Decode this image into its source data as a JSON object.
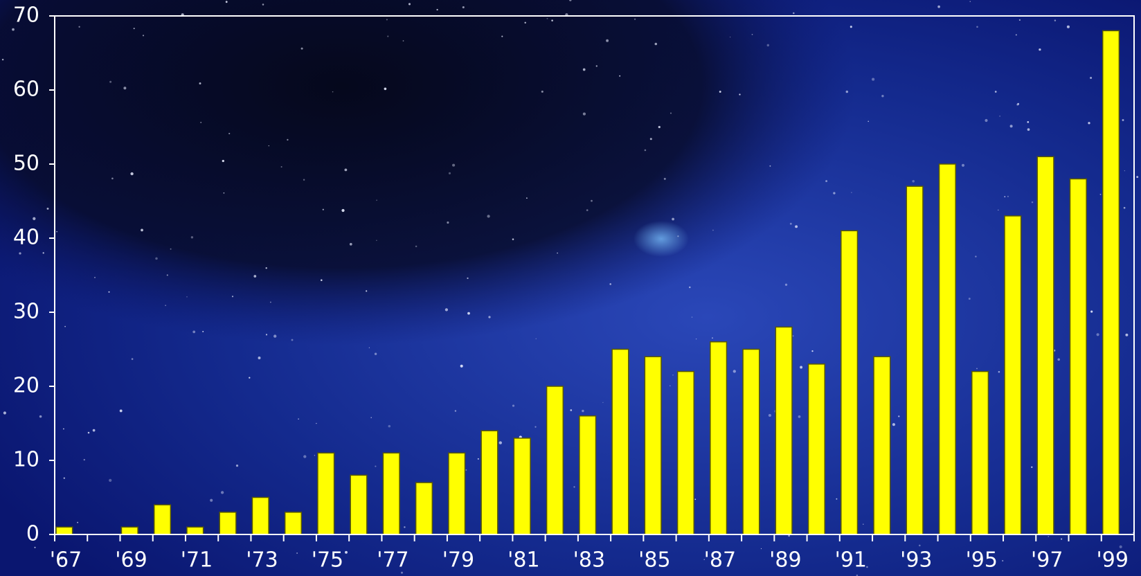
{
  "chart_data": {
    "type": "bar",
    "categories": [
      "'67",
      null,
      "'69",
      null,
      "'71",
      null,
      "'73",
      null,
      "'75",
      null,
      "'77",
      null,
      "'79",
      null,
      "'81",
      null,
      "'83",
      null,
      "'85",
      null,
      "'87",
      null,
      "'89",
      null,
      "'91",
      null,
      "'93",
      null,
      "'95",
      null,
      "'97",
      null,
      "'99"
    ],
    "values": [
      1,
      0,
      1,
      4,
      1,
      3,
      5,
      3,
      11,
      8,
      11,
      7,
      11,
      14,
      13,
      20,
      16,
      25,
      24,
      22,
      26,
      25,
      28,
      23,
      41,
      24,
      47,
      50,
      22,
      43,
      51,
      48,
      68
    ],
    "color": "#ffff00",
    "ylim": [
      0,
      70
    ],
    "yticks": [
      0,
      10,
      20,
      30,
      40,
      50,
      60,
      70
    ],
    "grid": false
  }
}
